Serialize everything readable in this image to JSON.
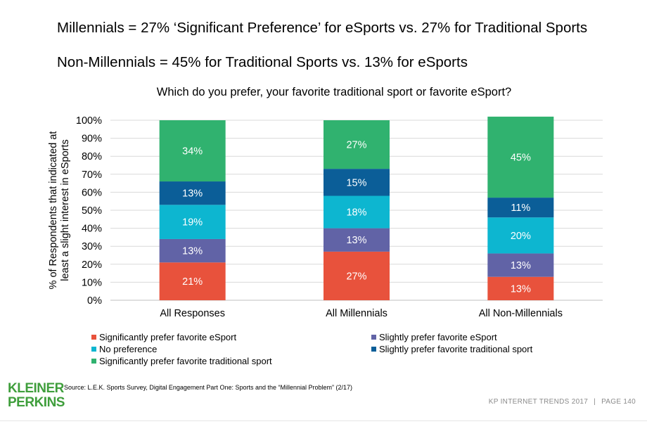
{
  "headlines": {
    "line1": "Millennials = 27% ‘Significant Preference’ for eSports vs. 27% for Traditional Sports",
    "line2": "Non-Millennials  = 45% for Traditional Sports vs. 13% for eSports"
  },
  "chart_data": {
    "type": "bar",
    "stacked": true,
    "title": "Which do you prefer, your favorite traditional sport or favorite eSport?",
    "ylabel_lines": [
      "% of Respondents that indicated at",
      "least a slight interest in eSports"
    ],
    "xlabel": "",
    "ylim": [
      0,
      100
    ],
    "yticks": [
      "0%",
      "10%",
      "20%",
      "30%",
      "40%",
      "50%",
      "60%",
      "70%",
      "80%",
      "90%",
      "100%"
    ],
    "grid": true,
    "categories": [
      "All Responses",
      "All Millennials",
      "All Non-Millennials"
    ],
    "series": [
      {
        "name": "Significantly prefer favorite eSport",
        "color": "#e8523c",
        "values": [
          21,
          27,
          13
        ]
      },
      {
        "name": "Slightly prefer favorite eSport",
        "color": "#6163a6",
        "values": [
          13,
          13,
          13
        ]
      },
      {
        "name": "No preference",
        "color": "#0db6d0",
        "values": [
          19,
          18,
          20
        ]
      },
      {
        "name": "Slightly prefer favorite traditional sport",
        "color": "#0b5e98",
        "values": [
          13,
          15,
          11
        ]
      },
      {
        "name": "Significantly prefer favorite traditional sport",
        "color": "#30b26f",
        "values": [
          34,
          27,
          45
        ]
      }
    ],
    "data_labels": [
      [
        "21%",
        "27%",
        "13%"
      ],
      [
        "13%",
        "13%",
        "13%"
      ],
      [
        "19%",
        "18%",
        "20%"
      ],
      [
        "13%",
        "15%",
        "11%"
      ],
      [
        "34%",
        "27%",
        "45%"
      ]
    ],
    "legend_position": "bottom"
  },
  "footer": {
    "source": "Source: L.E.K. Sports Survey, Digital Engagement Part One: Sports and the “Millennial Problem” (2/17)",
    "report": "KP INTERNET TRENDS 2017",
    "separator": "|",
    "page": "PAGE 140"
  },
  "logo": {
    "line1": "KLEINER",
    "line2": "PERKINS",
    "color": "#3f9e3c"
  }
}
